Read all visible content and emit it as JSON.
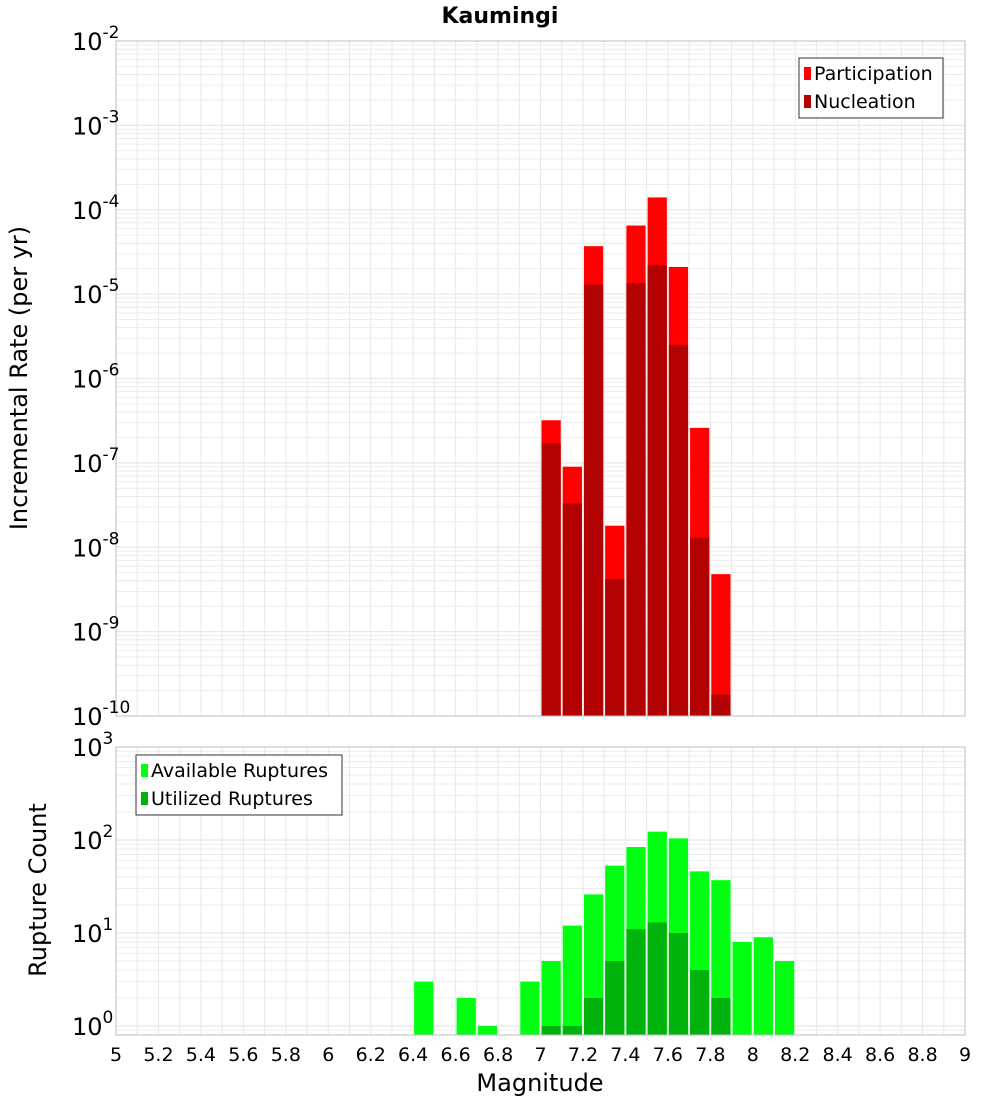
{
  "colors": {
    "participation": "#ff0000",
    "nucleation": "#b30000",
    "available": "#00ff11",
    "utilized": "#00b30c",
    "grid": "#e8e8e8",
    "frame": "#bdbdbd"
  },
  "chart_data": [
    {
      "type": "bar",
      "title": "Kaumingi",
      "ylabel": "Incremental Rate (per yr)",
      "y_scale": "log",
      "ylim": [
        1e-10,
        0.01
      ],
      "ytick_exponents": [
        -10,
        -9,
        -8,
        -7,
        -6,
        -5,
        -4,
        -3,
        -2
      ],
      "xlim": [
        5,
        9
      ],
      "bin_width": 0.1,
      "legend_position": "top-right",
      "series": [
        {
          "name": "Participation",
          "x": [
            7.05,
            7.15,
            7.25,
            7.35,
            7.45,
            7.55,
            7.65,
            7.75,
            7.85
          ],
          "values": [
            3.2e-07,
            9e-08,
            3.7e-05,
            1.8e-08,
            6.5e-05,
            0.00014,
            2.1e-05,
            2.6e-07,
            4.8e-09
          ]
        },
        {
          "name": "Nucleation",
          "x": [
            7.05,
            7.15,
            7.25,
            7.35,
            7.45,
            7.55,
            7.65,
            7.75,
            7.85
          ],
          "values": [
            1.7e-07,
            3.3e-08,
            1.3e-05,
            4.2e-09,
            1.35e-05,
            2.2e-05,
            2.5e-06,
            1.3e-08,
            1.8e-10
          ]
        }
      ]
    },
    {
      "type": "bar",
      "ylabel": "Rupture Count",
      "xlabel": "Magnitude",
      "y_scale": "log",
      "ylim": [
        0.8,
        1000
      ],
      "ytick_exponents": [
        0,
        1,
        2,
        3
      ],
      "xlim": [
        5,
        9
      ],
      "bin_width": 0.1,
      "legend_position": "top-left",
      "xticks": [
        "5",
        "5.2",
        "5.4",
        "5.6",
        "5.8",
        "6",
        "6.2",
        "6.4",
        "6.6",
        "6.8",
        "7",
        "7.2",
        "7.4",
        "7.6",
        "7.8",
        "8",
        "8.2",
        "8.4",
        "8.6",
        "8.8",
        "9"
      ],
      "series": [
        {
          "name": "Available Ruptures",
          "x": [
            6.45,
            6.65,
            6.75,
            6.95,
            7.05,
            7.15,
            7.25,
            7.35,
            7.45,
            7.55,
            7.65,
            7.75,
            7.85,
            7.95,
            8.05,
            8.15
          ],
          "values": [
            3,
            2,
            1,
            3,
            5,
            12,
            26,
            53,
            84,
            123,
            104,
            46,
            37,
            8,
            9,
            5
          ]
        },
        {
          "name": "Utilized Ruptures",
          "x": [
            7.05,
            7.15,
            7.25,
            7.35,
            7.45,
            7.55,
            7.65,
            7.75,
            7.85
          ],
          "values": [
            1,
            1,
            2,
            5,
            11,
            13,
            10,
            4,
            2
          ]
        }
      ]
    }
  ]
}
